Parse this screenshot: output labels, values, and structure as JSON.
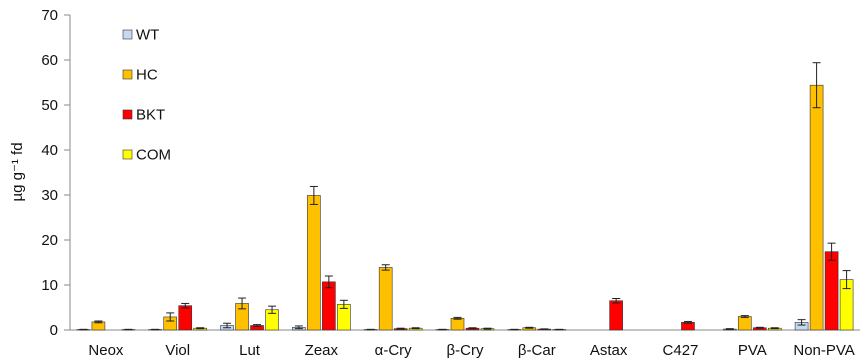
{
  "chart_data": {
    "type": "bar",
    "title": "",
    "xlabel": "",
    "ylabel": "µg g⁻¹ fd",
    "ylim": [
      0,
      70
    ],
    "yticks": [
      0,
      10,
      20,
      30,
      40,
      50,
      60,
      70
    ],
    "grid": false,
    "legend_placement": "top-left",
    "categories": [
      "Neox",
      "Viol",
      "Lut",
      "Zeax",
      "α-Cry",
      "β-Cry",
      "β-Car",
      "Astax",
      "C427",
      "PVA",
      "Non-PVA"
    ],
    "series": [
      {
        "name": "WT",
        "color": "#c5d9f1",
        "values": [
          0.1,
          0.1,
          1.0,
          0.6,
          0.1,
          0.1,
          0.1,
          0,
          0,
          0.2,
          1.7
        ],
        "errors": [
          0.05,
          0.05,
          0.5,
          0.3,
          0.05,
          0.05,
          0.05,
          0,
          0,
          0.1,
          0.6
        ]
      },
      {
        "name": "HC",
        "color": "#ffc000",
        "values": [
          1.8,
          2.9,
          5.9,
          29.9,
          13.9,
          2.6,
          0.5,
          0,
          0,
          3.0,
          54.4
        ],
        "errors": [
          0.2,
          0.9,
          1.2,
          2.0,
          0.6,
          0.2,
          0.1,
          0,
          0,
          0.2,
          5.0
        ]
      },
      {
        "name": "BKT",
        "color": "#ff0000",
        "values": [
          0,
          5.4,
          1.0,
          10.7,
          0.3,
          0.4,
          0.2,
          6.5,
          1.7,
          0.5,
          17.4
        ],
        "errors": [
          0,
          0.5,
          0.2,
          1.3,
          0.1,
          0.1,
          0.05,
          0.5,
          0.2,
          0.1,
          1.9
        ]
      },
      {
        "name": "COM",
        "color": "#ffff00",
        "values": [
          0.1,
          0.4,
          4.5,
          5.7,
          0.4,
          0.3,
          0.1,
          0,
          0,
          0.4,
          11.2
        ],
        "errors": [
          0.05,
          0.1,
          0.8,
          0.9,
          0.1,
          0.1,
          0.05,
          0,
          0,
          0.1,
          2.0
        ]
      }
    ]
  }
}
